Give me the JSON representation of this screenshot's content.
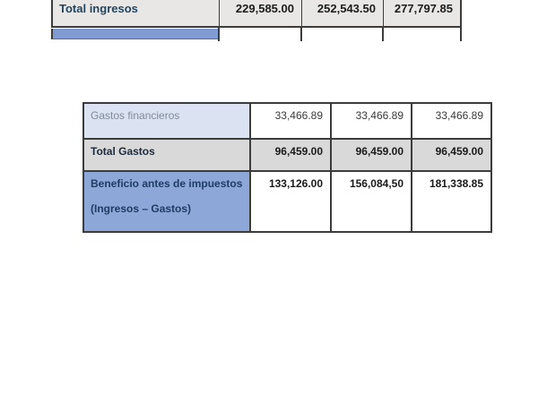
{
  "document": {
    "language": "es",
    "background": "#ffffff",
    "description": "Cropped financial document with income and expense tables"
  },
  "top_table": {
    "row_total_ingresos": {
      "label": "Total ingresos",
      "values": [
        "229,585.00",
        "252,543.50",
        "277,797.85"
      ]
    }
  },
  "bottom_table": {
    "row_gastos_financieros": {
      "label": "Gastos financieros",
      "values": [
        "33,466.89",
        "33,466.89",
        "33,466.89"
      ]
    },
    "row_total_gastos": {
      "label": "Total Gastos",
      "values": [
        "96,459.00",
        "96,459.00",
        "96,459.00"
      ]
    },
    "row_beneficio": {
      "label": "Beneficio antes de impuestos",
      "label_line2": "(Ingresos – Gastos)",
      "values": [
        "133,126.00",
        "156,084,50",
        "181,338.85"
      ]
    }
  },
  "colors": {
    "border": "#3c3c3c",
    "header_row_gray": "#e8e7e6",
    "total_row_gray": "#d9d9d9",
    "light_blue_cell": "#dbe3f2",
    "medium_blue_cell": "#8ca7d8",
    "highlight_blue_cell": "#7f9bd1",
    "navy_text": "#1f3c63",
    "muted_label_text": "#828b99"
  }
}
